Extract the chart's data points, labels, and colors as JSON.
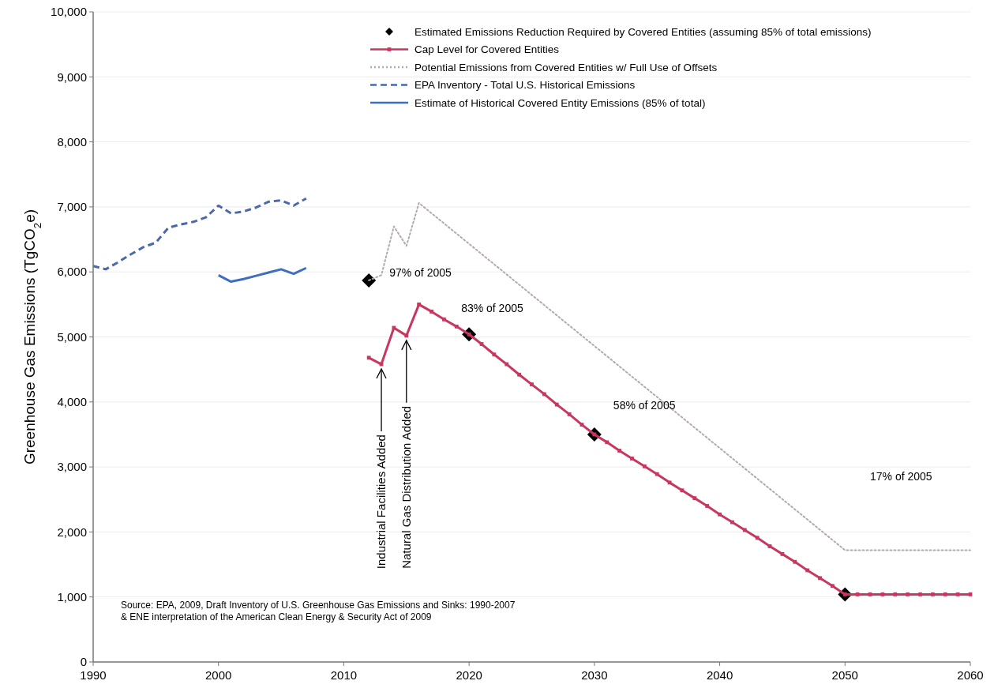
{
  "chart_data": {
    "type": "line",
    "ylabel": "Greenhouse Gas Emissions (TgCO$_{2}$e)",
    "xlim": [
      1990,
      2060
    ],
    "xticks": [
      1990,
      2000,
      2010,
      2020,
      2030,
      2040,
      2050,
      2060
    ],
    "ylim": [
      0,
      10000
    ],
    "yticks": [
      0,
      {
        "value": 1000,
        "label": "1,000"
      },
      {
        "value": 2000,
        "label": "2,000"
      },
      {
        "value": 3000,
        "label": "3,000"
      },
      {
        "value": 4000,
        "label": "4,000"
      },
      {
        "value": 5000,
        "label": "5,000"
      },
      {
        "value": 6000,
        "label": "6,000"
      },
      {
        "value": 7000,
        "label": "7,000"
      },
      {
        "value": 8000,
        "label": "8,000"
      },
      {
        "value": 9000,
        "label": "9,000"
      },
      {
        "value": 10000,
        "label": "10,000"
      }
    ],
    "grid": "y",
    "legend": "top right",
    "series": [
      {
        "name": "Estimated Emissions Reduction Required by Covered Entities (assuming 85% of total emissions)",
        "type": "scatter",
        "marker": "diamond",
        "color": "#000000",
        "x": [
          2012,
          2020,
          2030,
          2050
        ],
        "values": [
          5870,
          5040,
          3500,
          1040
        ]
      },
      {
        "name": "Cap Level for Covered Entities",
        "marker": "square",
        "line_style": "solid",
        "color": "#c8385e",
        "x": [
          2012,
          2013,
          2014,
          2015,
          2016,
          2017,
          2018,
          2019,
          2020,
          2021,
          2022,
          2023,
          2024,
          2025,
          2026,
          2027,
          2028,
          2029,
          2030,
          2031,
          2032,
          2033,
          2034,
          2035,
          2036,
          2037,
          2038,
          2039,
          2040,
          2041,
          2042,
          2043,
          2044,
          2045,
          2046,
          2047,
          2048,
          2049,
          2050,
          2051,
          2052,
          2053,
          2054,
          2055,
          2056,
          2057,
          2058,
          2059,
          2060
        ],
        "values": [
          4680,
          4580,
          5140,
          5020,
          5500,
          5390,
          5270,
          5160,
          5040,
          4890,
          4730,
          4580,
          4420,
          4270,
          4120,
          3960,
          3810,
          3650,
          3500,
          3380,
          3250,
          3130,
          3010,
          2890,
          2760,
          2640,
          2520,
          2400,
          2270,
          2150,
          2030,
          1910,
          1780,
          1660,
          1540,
          1410,
          1290,
          1170,
          1040,
          1040,
          1040,
          1040,
          1040,
          1040,
          1040,
          1040,
          1040,
          1040,
          1040
        ]
      },
      {
        "name": "Potential Emissions from Covered Entities w/ Full Use of Offsets",
        "marker": "none",
        "line_style": "dotted",
        "color": "#b4a9ac",
        "x": [
          2012,
          2013,
          2014,
          2015,
          2016,
          2050,
          2060
        ],
        "values": [
          5870,
          5950,
          6700,
          6400,
          7060,
          1720,
          1720
        ]
      },
      {
        "name": "EPA Inventory - Total U.S. Historical Emissions",
        "marker": "none",
        "line_style": "dashed",
        "color": "#4a69ad",
        "x": [
          1990,
          1991,
          1992,
          1993,
          1994,
          1995,
          1996,
          1997,
          1998,
          1999,
          2000,
          2001,
          2002,
          2003,
          2004,
          2005,
          2006,
          2007
        ],
        "values": [
          6090,
          6040,
          6150,
          6270,
          6380,
          6450,
          6680,
          6730,
          6770,
          6840,
          7020,
          6900,
          6930,
          6990,
          7080,
          7100,
          7020,
          7130
        ]
      },
      {
        "name": "Estimate of Historical Covered Entity Emissions (85% of total)",
        "marker": "none",
        "line_style": "solid",
        "color": "#3e6ebf",
        "x": [
          2000,
          2001,
          2002,
          2003,
          2004,
          2005,
          2006,
          2007
        ],
        "values": [
          5950,
          5850,
          5890,
          5940,
          5990,
          6040,
          5970,
          6060
        ]
      }
    ],
    "annotations": [
      {
        "text": "97% of 2005",
        "x": 2012,
        "y": 5870
      },
      {
        "text": "83% of 2005",
        "x": 2020,
        "y": 5040
      },
      {
        "text": "58% of 2005",
        "x": 2030,
        "y": 3500
      },
      "17% of 2005",
      {
        "text": "Industrial Facilities Added",
        "x": 2013,
        "y": 4580
      },
      {
        "text": "Natural Gas Distribution Added",
        "x": 2015,
        "y": 5020
      },
      "Source: EPA, 2009, Draft Inventory of U.S. Greenhouse Gas Emissions and Sinks: 1990-2007\n& ENE interpretation of the American Clean Energy & Security Act of 2009"
    ]
  }
}
